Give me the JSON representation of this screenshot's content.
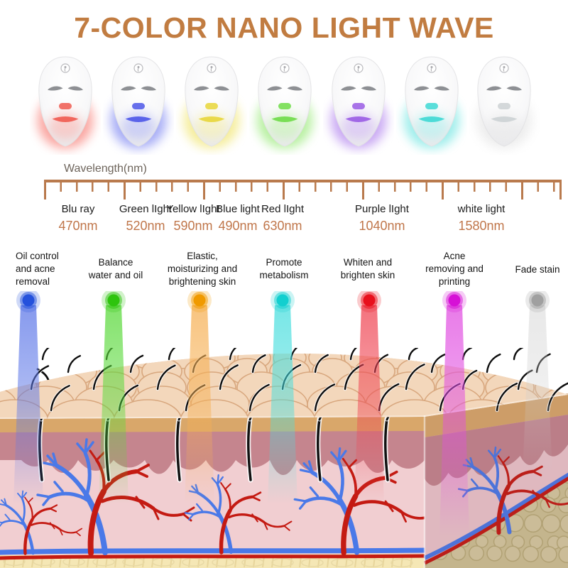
{
  "title": "7-COLOR NANO LIGHT WAVE",
  "colors": {
    "title_text": "#c17c41",
    "ruler": "#b97a4d",
    "nm_text": "#c0764a",
    "label_text": "#1b1b1b",
    "benefit_text": "#141414"
  },
  "masks": [
    {
      "name": "red-light-mask",
      "glow": "#f76e66",
      "accent": "#ef5a50",
      "glow_opacity": 0.55
    },
    {
      "name": "blue-light-mask",
      "glow": "#6f79f0",
      "accent": "#4d57e8",
      "glow_opacity": 0.55
    },
    {
      "name": "yellow-light-mask",
      "glow": "#efe25e",
      "accent": "#e8d63a",
      "glow_opacity": 0.55
    },
    {
      "name": "green-light-mask",
      "glow": "#8ce768",
      "accent": "#6edc48",
      "glow_opacity": 0.55
    },
    {
      "name": "purple-light-mask",
      "glow": "#a974ec",
      "accent": "#9a5ce4",
      "glow_opacity": 0.55
    },
    {
      "name": "cyan-light-mask",
      "glow": "#63e3df",
      "accent": "#3ed8d4",
      "glow_opacity": 0.55
    },
    {
      "name": "white-light-mask",
      "glow": "#d9d9d9",
      "accent": "#ccd1d4",
      "glow_opacity": 0.4
    }
  ],
  "wavelength_axis": {
    "axis_label": "Wavelength(nm)",
    "entries": [
      {
        "label": "Blu ray",
        "value": "470nm"
      },
      {
        "label": "Green lIght",
        "value": "520nm"
      },
      {
        "label": "Yellow lIght",
        "value": "590nm"
      },
      {
        "label": "Blue light",
        "value": "490nm"
      },
      {
        "label": "Red lIght",
        "value": "630nm"
      },
      {
        "label": "Purple lIght",
        "value": "1040nm"
      },
      {
        "label": "white light",
        "value": "1580nm"
      }
    ]
  },
  "treatments": [
    {
      "benefit_lines": [
        "Oil control",
        "and acne",
        "removal"
      ],
      "beam_color": "#5e78e8",
      "dot_color": "#2451dc"
    },
    {
      "benefit_lines": [
        "Balance",
        "water and oil"
      ],
      "beam_color": "#59d93a",
      "dot_color": "#2ec40e"
    },
    {
      "benefit_lines": [
        "Elastic,",
        "moisturizing and",
        "brightening skin"
      ],
      "beam_color": "#f6b054",
      "dot_color": "#f09a00"
    },
    {
      "benefit_lines": [
        "Promote",
        "metabolism"
      ],
      "beam_color": "#49dede",
      "dot_color": "#12cfcf"
    },
    {
      "benefit_lines": [
        "Whiten and",
        "brighten skin"
      ],
      "beam_color": "#ef4452",
      "dot_color": "#e8101c"
    },
    {
      "benefit_lines": [
        "Acne",
        "removing and",
        "printing"
      ],
      "beam_color": "#e14fe1",
      "dot_color": "#d611d6"
    },
    {
      "benefit_lines": [
        "Fade stain"
      ],
      "beam_color": "#cccccc",
      "dot_color": "#a0a0a0"
    }
  ],
  "skin_illustration": {
    "surface": "#f3d7bb",
    "epidermis": "#d9a76a",
    "dermis": "#c5858e",
    "lower_dermis": "#f1ced1",
    "fat": "#f5e7b5",
    "side_fat": "#cfc293",
    "artery": "#c41a12",
    "vein": "#4a79e8"
  }
}
